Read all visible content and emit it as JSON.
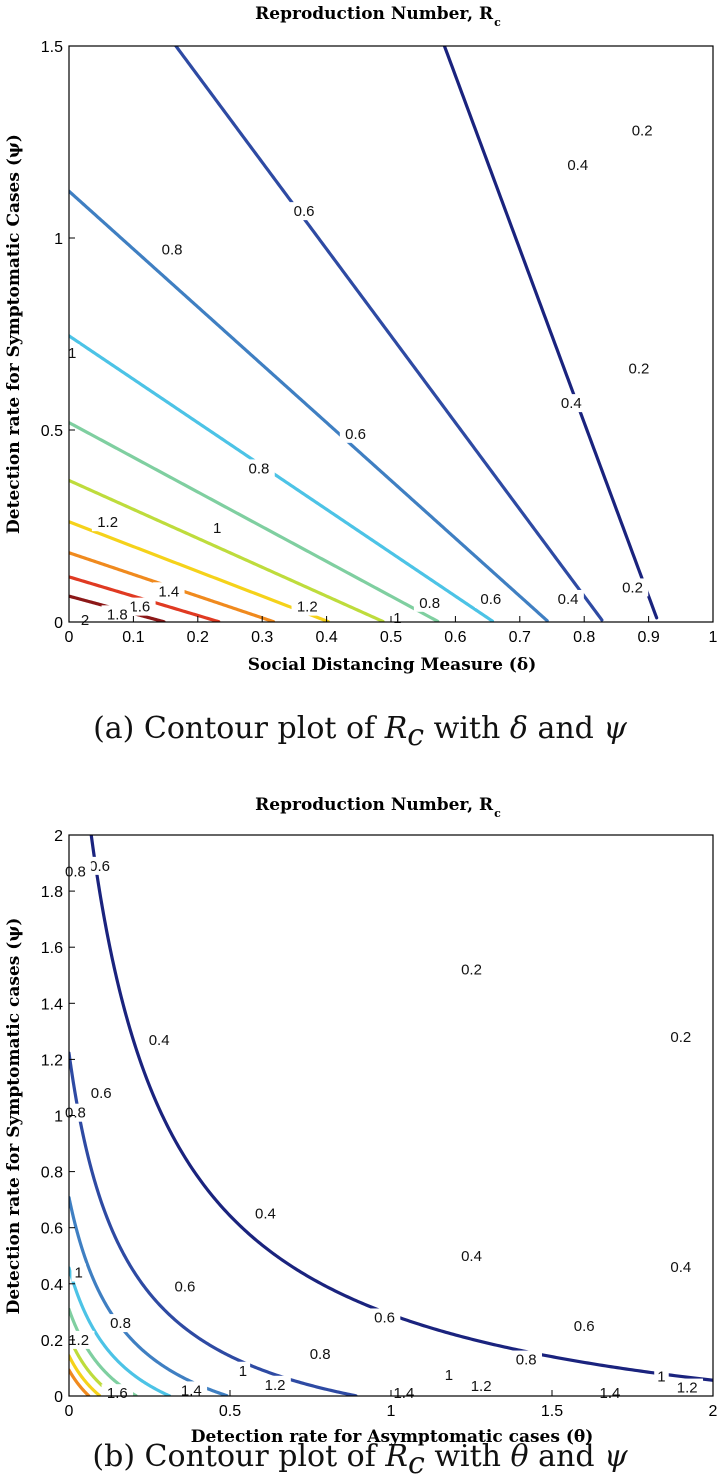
{
  "chart_data": [
    {
      "type": "contour",
      "title": "Reproduction Number, R",
      "title_subscript": "c",
      "xlabel": "Social Distancing Measure (δ)",
      "ylabel": "Detection rate for Symptomatic Cases (ψ)",
      "xlim": [
        0,
        1
      ],
      "ylim": [
        0,
        1.5
      ],
      "xticks": [
        "0",
        "0.1",
        "0.2",
        "0.3",
        "0.4",
        "0.5",
        "0.6",
        "0.7",
        "0.8",
        "0.9",
        "1"
      ],
      "xtick_values": [
        0,
        0.1,
        0.2,
        0.3,
        0.4,
        0.5,
        0.6,
        0.7,
        0.8,
        0.9,
        1
      ],
      "yticks": [
        "0",
        "0.5",
        "1",
        "1.5"
      ],
      "ytick_values": [
        0,
        0.5,
        1,
        1.5
      ],
      "levels": [
        0.2,
        0.4,
        0.6,
        0.8,
        1,
        1.2,
        1.4,
        1.6,
        1.8,
        2
      ],
      "level_labels": [
        "0.2",
        "0.4",
        "0.6",
        "0.8",
        "1",
        "1.2",
        "1.4",
        "1.6",
        "1.8",
        "2"
      ],
      "level_colors": [
        "#1a237e",
        "#2e4aa3",
        "#3f7fc2",
        "#4cc3e6",
        "#7fcfa0",
        "#bedc3c",
        "#f5d21a",
        "#f08a1e",
        "#e03a22",
        "#8c1818"
      ],
      "labels_on_plot": [
        {
          "text": "0.2",
          "x": 0.89,
          "y": 1.28
        },
        {
          "text": "0.2",
          "x": 0.885,
          "y": 0.66
        },
        {
          "text": "0.2",
          "x": 0.875,
          "y": 0.09
        },
        {
          "text": "0.4",
          "x": 0.79,
          "y": 1.19
        },
        {
          "text": "0.4",
          "x": 0.78,
          "y": 0.57
        },
        {
          "text": "0.4",
          "x": 0.775,
          "y": 0.06
        },
        {
          "text": "0.6",
          "x": 0.365,
          "y": 1.07
        },
        {
          "text": "0.6",
          "x": 0.445,
          "y": 0.49
        },
        {
          "text": "0.6",
          "x": 0.655,
          "y": 0.06
        },
        {
          "text": "0.8",
          "x": 0.16,
          "y": 0.97
        },
        {
          "text": "0.8",
          "x": 0.295,
          "y": 0.4
        },
        {
          "text": "0.8",
          "x": 0.56,
          "y": 0.05
        },
        {
          "text": "1",
          "x": 0.23,
          "y": 0.245
        },
        {
          "text": "1",
          "x": 0.51,
          "y": 0.01
        },
        {
          "text": "1",
          "x": 0.005,
          "y": 0.7
        },
        {
          "text": "1.2",
          "x": 0.06,
          "y": 0.26
        },
        {
          "text": "1.2",
          "x": 0.37,
          "y": 0.04
        },
        {
          "text": "1.4",
          "x": 0.155,
          "y": 0.08
        },
        {
          "text": "1.6",
          "x": 0.11,
          "y": 0.04
        },
        {
          "text": "1.8",
          "x": 0.075,
          "y": 0.02
        },
        {
          "text": "2",
          "x": 0.025,
          "y": 0.005
        }
      ]
    },
    {
      "type": "contour",
      "title": "Reproduction Number, R",
      "title_subscript": "c",
      "xlabel": "Detection rate for Asymptomatic cases (θ)",
      "ylabel": "Detection rate for Symptomatic cases (ψ)",
      "xlim": [
        0,
        2
      ],
      "ylim": [
        0,
        2
      ],
      "xticks": [
        "0",
        "0.5",
        "1",
        "1.5",
        "2"
      ],
      "xtick_values": [
        0,
        0.5,
        1,
        1.5,
        2
      ],
      "yticks": [
        "0",
        "0.2",
        "0.4",
        "0.6",
        "0.8",
        "1",
        "1.2",
        "1.4",
        "1.6",
        "1.8",
        "2"
      ],
      "ytick_values": [
        0,
        0.2,
        0.4,
        0.6,
        0.8,
        1,
        1.2,
        1.4,
        1.6,
        1.8,
        2
      ],
      "levels": [
        0.2,
        0.4,
        0.6,
        0.8,
        1,
        1.2,
        1.4,
        1.6
      ],
      "level_labels": [
        "0.2",
        "0.4",
        "0.6",
        "0.8",
        "1",
        "1.2",
        "1.4",
        "1.6"
      ],
      "level_colors": [
        "#1a237e",
        "#2e4aa3",
        "#3f7fc2",
        "#4cc3e6",
        "#7fcfa0",
        "#bedc3c",
        "#f5d21a",
        "#f08a1e"
      ],
      "labels_on_plot": [
        {
          "text": "0.2",
          "x": 1.25,
          "y": 1.52
        },
        {
          "text": "0.2",
          "x": 1.9,
          "y": 1.28
        },
        {
          "text": "0.4",
          "x": 0.28,
          "y": 1.27
        },
        {
          "text": "0.4",
          "x": 0.61,
          "y": 0.65
        },
        {
          "text": "0.4",
          "x": 1.25,
          "y": 0.5
        },
        {
          "text": "0.4",
          "x": 1.9,
          "y": 0.46
        },
        {
          "text": "0.6",
          "x": 0.095,
          "y": 1.89
        },
        {
          "text": "0.6",
          "x": 0.1,
          "y": 1.08
        },
        {
          "text": "0.6",
          "x": 0.36,
          "y": 0.39
        },
        {
          "text": "0.6",
          "x": 0.98,
          "y": 0.28
        },
        {
          "text": "0.6",
          "x": 1.6,
          "y": 0.25
        },
        {
          "text": "0.8",
          "x": 0.02,
          "y": 1.87
        },
        {
          "text": "0.8",
          "x": 0.02,
          "y": 1.01
        },
        {
          "text": "0.8",
          "x": 0.16,
          "y": 0.26
        },
        {
          "text": "0.8",
          "x": 0.78,
          "y": 0.15
        },
        {
          "text": "0.8",
          "x": 1.42,
          "y": 0.13
        },
        {
          "text": "1",
          "x": 0.03,
          "y": 0.44
        },
        {
          "text": "1",
          "x": 0.54,
          "y": 0.09
        },
        {
          "text": "1",
          "x": 1.18,
          "y": 0.075
        },
        {
          "text": "1",
          "x": 1.84,
          "y": 0.07
        },
        {
          "text": "1.2",
          "x": 0.03,
          "y": 0.2
        },
        {
          "text": "1.2",
          "x": 0.64,
          "y": 0.04
        },
        {
          "text": "1.2",
          "x": 1.28,
          "y": 0.035
        },
        {
          "text": "1.2",
          "x": 1.92,
          "y": 0.03
        },
        {
          "text": "1.4",
          "x": 0.38,
          "y": 0.02
        },
        {
          "text": "1.4",
          "x": 1.04,
          "y": 0.01
        },
        {
          "text": "1.4",
          "x": 1.68,
          "y": 0.01
        },
        {
          "text": "1.6",
          "x": 0.15,
          "y": 0.01
        }
      ]
    }
  ],
  "captions": {
    "a": {
      "prefix": "(a)  Contour plot of ",
      "math1": "R",
      "math1_sub": "c",
      "middle": " with ",
      "math2": "δ",
      "and": " and ",
      "math3": "ψ"
    },
    "b": {
      "prefix": "(b)  Contour plot of ",
      "math1": "R",
      "math1_sub": "c",
      "middle": " with ",
      "math2": "θ",
      "and": " and ",
      "math3": "ψ"
    }
  }
}
